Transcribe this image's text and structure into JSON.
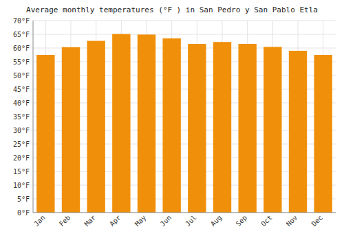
{
  "chart_data": {
    "type": "bar",
    "title": "Average monthly temperatures (°F ) in San Pedro y San Pablo Etla",
    "categories": [
      "Jan",
      "Feb",
      "Mar",
      "Apr",
      "May",
      "Jun",
      "Jul",
      "Aug",
      "Sep",
      "Oct",
      "Nov",
      "Dec"
    ],
    "values": [
      57.5,
      60.3,
      62.6,
      65.1,
      64.9,
      63.5,
      61.5,
      62.2,
      61.5,
      60.4,
      59.0,
      57.5
    ],
    "color": "#F0900A",
    "ylim": [
      0,
      70
    ],
    "yticks": [
      {
        "value": 0,
        "label": "0°F"
      },
      {
        "value": 5,
        "label": "5°F"
      },
      {
        "value": 10,
        "label": "10°F"
      },
      {
        "value": 15,
        "label": "15°F"
      },
      {
        "value": 20,
        "label": "20°F"
      },
      {
        "value": 25,
        "label": "25°F"
      },
      {
        "value": 30,
        "label": "30°F"
      },
      {
        "value": 35,
        "label": "35°F"
      },
      {
        "value": 40,
        "label": "40°F"
      },
      {
        "value": 45,
        "label": "45°F"
      },
      {
        "value": 50,
        "label": "50°F"
      },
      {
        "value": 55,
        "label": "55°F"
      },
      {
        "value": 60,
        "label": "60°F"
      },
      {
        "value": 65,
        "label": "65°F"
      },
      {
        "value": 70,
        "label": "70°F"
      }
    ],
    "grid": true
  }
}
